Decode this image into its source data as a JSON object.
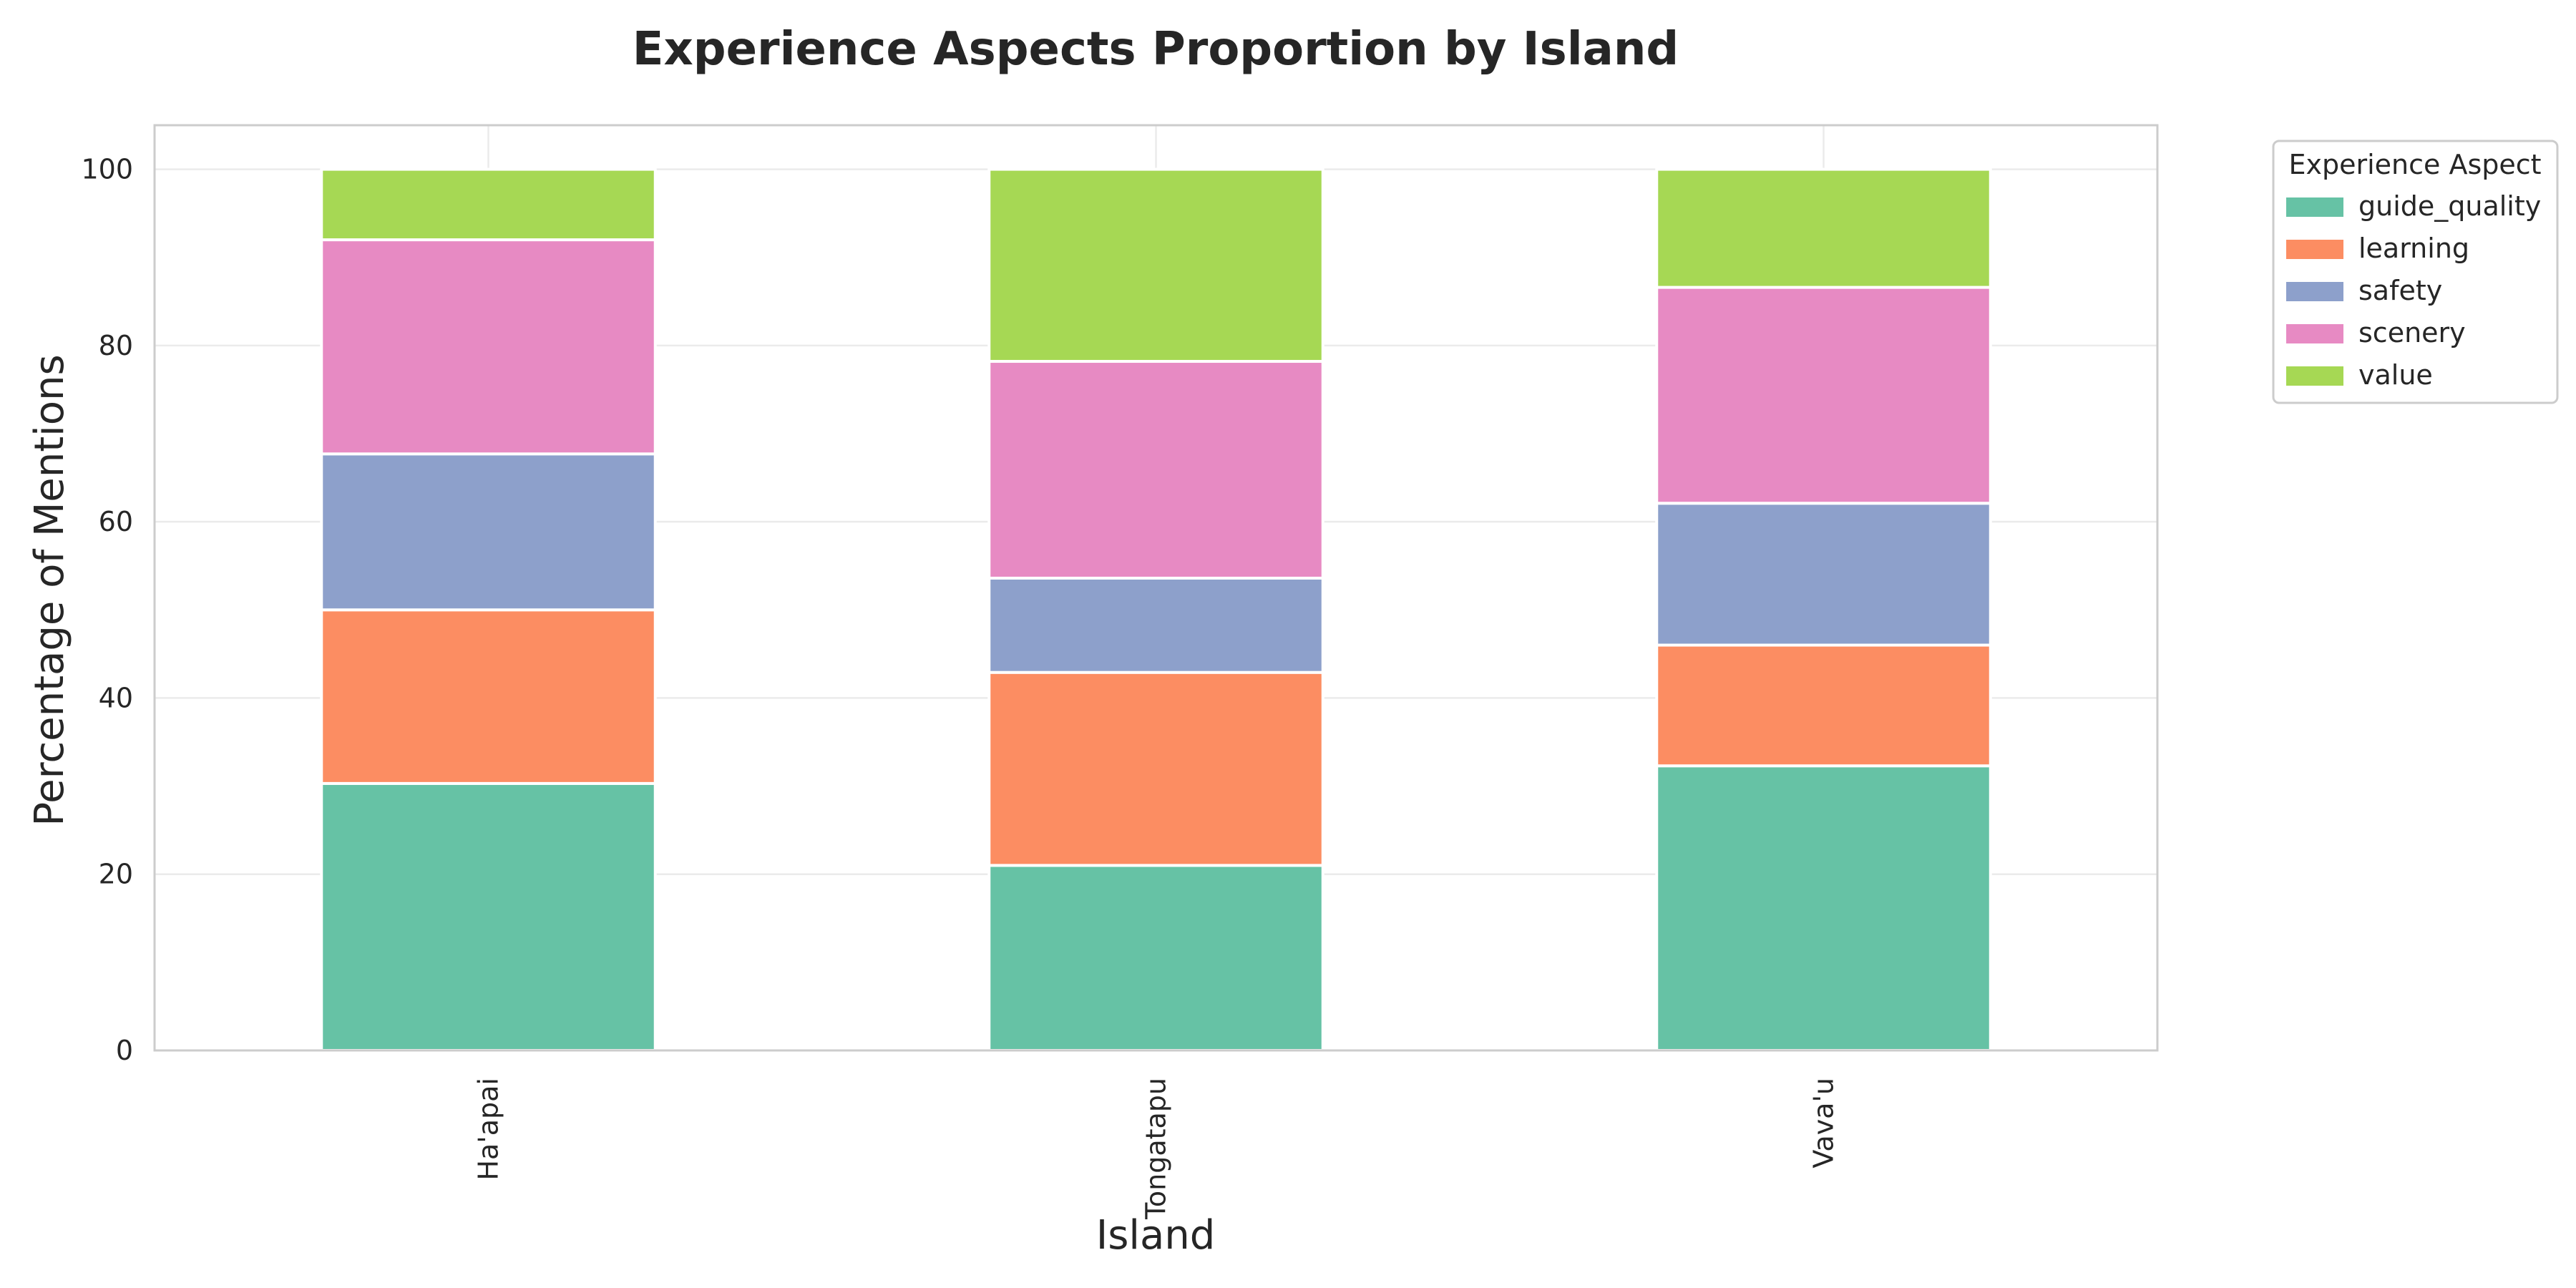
{
  "chart_data": {
    "type": "bar",
    "stacked": true,
    "title": "Experience Aspects Proportion by Island",
    "xlabel": "Island",
    "ylabel": "Percentage of Mentions",
    "ylim": [
      0,
      105
    ],
    "yticks": [
      "0",
      "20",
      "40",
      "60",
      "80",
      "100"
    ],
    "grid": true,
    "categories": [
      "Ha'apai",
      "Tongatapu",
      "Vava'u"
    ],
    "legend": {
      "title": "Experience Aspect",
      "placement": "outside-top-right"
    },
    "series": [
      {
        "name": "guide_quality",
        "color": "#66c2a5",
        "values": [
          30.3,
          21.0,
          32.3
        ]
      },
      {
        "name": "learning",
        "color": "#fc8d62",
        "values": [
          19.7,
          21.9,
          13.7
        ]
      },
      {
        "name": "safety",
        "color": "#8da0cb",
        "values": [
          17.7,
          10.7,
          16.1
        ]
      },
      {
        "name": "scenery",
        "color": "#e78ac3",
        "values": [
          24.3,
          24.6,
          24.5
        ]
      },
      {
        "name": "value",
        "color": "#a6d854",
        "values": [
          8.0,
          21.8,
          13.4
        ]
      }
    ]
  }
}
